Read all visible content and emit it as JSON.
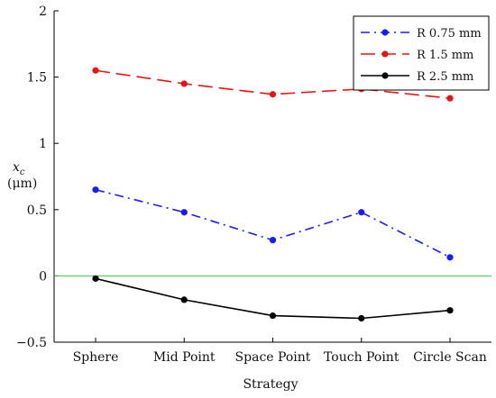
{
  "chart_data": {
    "type": "line",
    "title": "",
    "xlabel": "Strategy",
    "ylabel_symbol": "x",
    "ylabel_subscript": "c",
    "ylabel_unit": "(μm)",
    "categories": [
      "Sphere",
      "Mid Point",
      "Space Point",
      "Touch Point",
      "Circle Scan"
    ],
    "ylim": [
      -0.5,
      2
    ],
    "yticks": [
      -0.5,
      0,
      0.5,
      1,
      1.5,
      2
    ],
    "ytick_labels": [
      "−0.5",
      "0",
      "0.5",
      "1",
      "1.5",
      "2"
    ],
    "grid": false,
    "legend_position": "top-right",
    "reference_line": {
      "y": 0,
      "color": "#33cc33"
    },
    "series": [
      {
        "name": "R 0.75 mm",
        "color": "#1a1aff",
        "dash": "dash-dot",
        "values": [
          0.65,
          0.48,
          0.27,
          0.48,
          0.14
        ]
      },
      {
        "name": "R 1.5 mm",
        "color": "#ee1111",
        "dash": "dash",
        "values": [
          1.55,
          1.45,
          1.37,
          1.41,
          1.34
        ]
      },
      {
        "name": "R 2.5 mm",
        "color": "#000000",
        "dash": "solid",
        "values": [
          -0.02,
          -0.18,
          -0.3,
          -0.32,
          -0.26
        ]
      }
    ]
  }
}
